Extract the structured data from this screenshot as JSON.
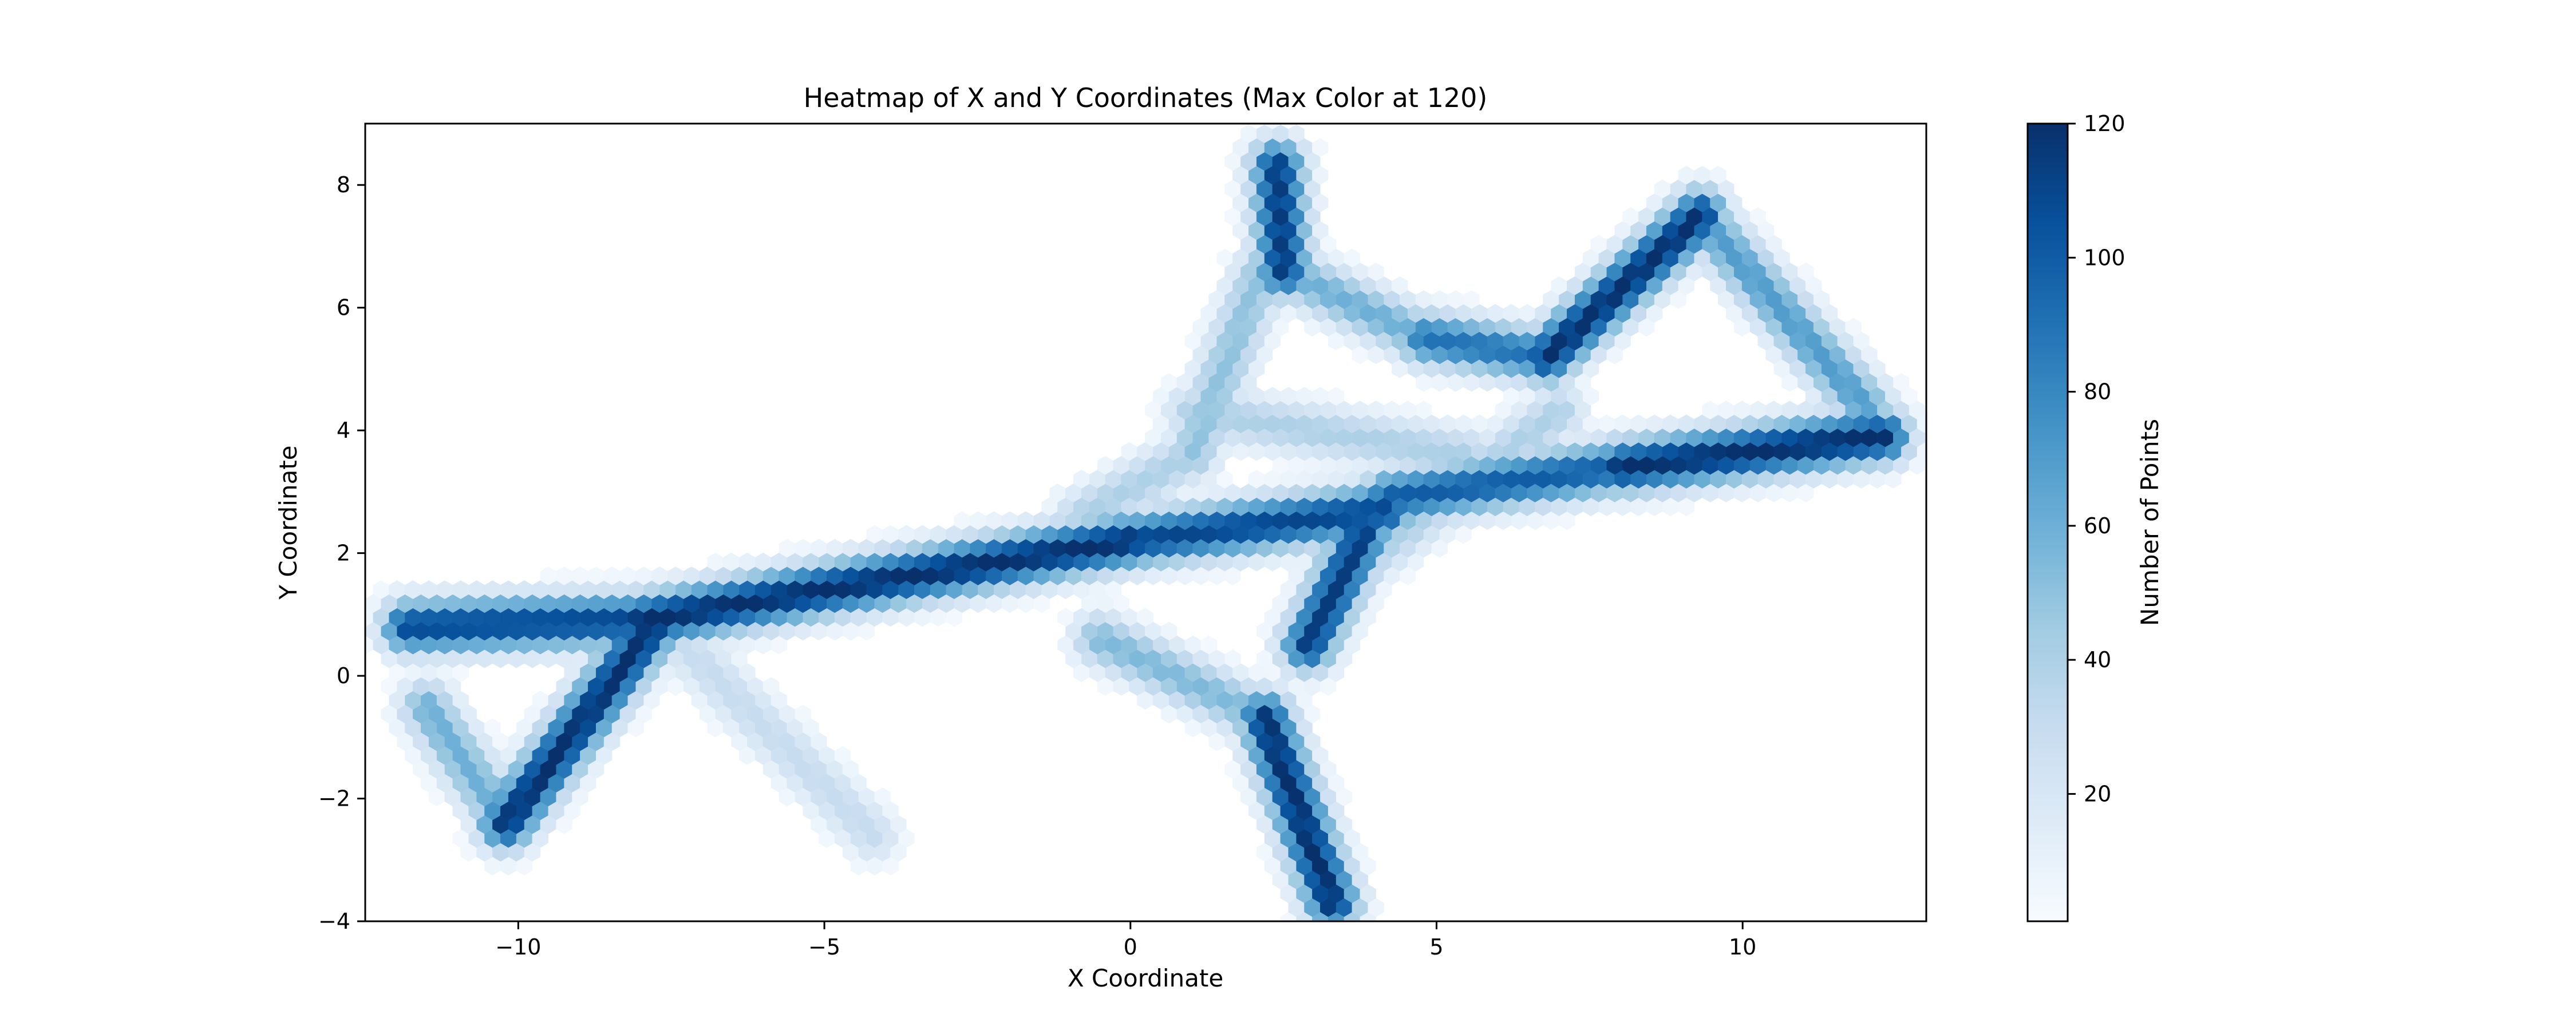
{
  "chart_data": {
    "type": "heatmap",
    "subtype": "hexbin",
    "title": "Heatmap of X and Y Coordinates (Max Color at 120)",
    "xlabel": "X Coordinate",
    "ylabel": "Y Coordinate",
    "xlim": [
      -12.5,
      13.0
    ],
    "ylim": [
      -4.0,
      9.0
    ],
    "x_ticks": [
      -10,
      -5,
      0,
      5,
      10
    ],
    "y_ticks": [
      -4,
      -2,
      0,
      2,
      4,
      6,
      8
    ],
    "colormap": "Blues",
    "colormap_stops": [
      "#f7fbff",
      "#deebf7",
      "#c6dbef",
      "#9ecae1",
      "#6baed6",
      "#4292c6",
      "#2171b5",
      "#08519c",
      "#08306b"
    ],
    "color_range": [
      1,
      120
    ],
    "colorbar": {
      "label": "Number of Points",
      "ticks": [
        20,
        40,
        60,
        80,
        100,
        120
      ]
    },
    "grid": false,
    "density_segments": [
      {
        "from": [
          -11.8,
          0.8
        ],
        "to": [
          -8.0,
          0.9
        ],
        "peak": 110
      },
      {
        "from": [
          -8.0,
          0.9
        ],
        "to": [
          -5.0,
          1.4
        ],
        "peak": 120
      },
      {
        "from": [
          -5.0,
          1.4
        ],
        "to": [
          0.0,
          2.2
        ],
        "peak": 120
      },
      {
        "from": [
          0.0,
          2.2
        ],
        "to": [
          4.2,
          2.7
        ],
        "peak": 110
      },
      {
        "from": [
          4.2,
          2.9
        ],
        "to": [
          8.0,
          3.4
        ],
        "peak": 100
      },
      {
        "from": [
          8.0,
          3.4
        ],
        "to": [
          12.3,
          3.9
        ],
        "peak": 120
      },
      {
        "from": [
          -10.2,
          -2.4
        ],
        "to": [
          -7.8,
          0.8
        ],
        "peak": 120
      },
      {
        "from": [
          -11.5,
          -0.5
        ],
        "to": [
          -10.2,
          -2.4
        ],
        "peak": 60
      },
      {
        "from": [
          -7.3,
          0.5
        ],
        "to": [
          -4.2,
          -2.6
        ],
        "peak": 30
      },
      {
        "from": [
          2.4,
          8.3
        ],
        "to": [
          2.5,
          6.6
        ],
        "peak": 115
      },
      {
        "from": [
          2.5,
          6.6
        ],
        "to": [
          4.8,
          5.5
        ],
        "peak": 60
      },
      {
        "from": [
          4.8,
          5.5
        ],
        "to": [
          6.8,
          5.2
        ],
        "peak": 90
      },
      {
        "from": [
          6.8,
          5.2
        ],
        "to": [
          9.3,
          7.5
        ],
        "peak": 120
      },
      {
        "from": [
          9.3,
          7.5
        ],
        "to": [
          12.0,
          4.4
        ],
        "peak": 70
      },
      {
        "from": [
          2.1,
          6.5
        ],
        "to": [
          1.0,
          3.6
        ],
        "peak": 50
      },
      {
        "from": [
          1.0,
          3.6
        ],
        "to": [
          -0.8,
          2.6
        ],
        "peak": 40
      },
      {
        "from": [
          2.2,
          -0.7
        ],
        "to": [
          3.3,
          -3.7
        ],
        "peak": 120
      },
      {
        "from": [
          2.9,
          0.5
        ],
        "to": [
          3.8,
          2.3
        ],
        "peak": 115
      },
      {
        "from": [
          -0.5,
          0.6
        ],
        "to": [
          2.2,
          -0.7
        ],
        "peak": 55
      },
      {
        "from": [
          4.0,
          2.0
        ],
        "to": [
          7.0,
          4.3
        ],
        "peak": 40
      },
      {
        "from": [
          1.0,
          4.3
        ],
        "to": [
          5.5,
          3.6
        ],
        "peak": 40
      }
    ]
  }
}
